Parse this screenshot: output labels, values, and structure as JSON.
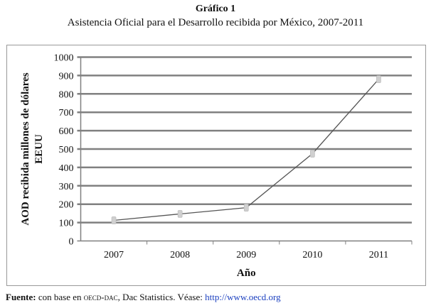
{
  "title": "Gráfico 1",
  "subtitle": "Asistencia Oficial para el Desarrollo recibida por México, 2007-2011",
  "chart_data": {
    "type": "line",
    "categories": [
      "2007",
      "2008",
      "2009",
      "2010",
      "2011"
    ],
    "series": [
      {
        "name": "AOD recibida",
        "values": [
          112,
          147,
          181,
          475,
          880
        ]
      }
    ],
    "xlabel": "Año",
    "ylabel": "AOD recibida millones de dólares EEUU",
    "ylabel_lines": [
      "AOD recibida millones de dólares",
      "EEUU"
    ],
    "ylim": [
      0,
      1000
    ],
    "yticks": [
      0,
      100,
      200,
      300,
      400,
      500,
      600,
      700,
      800,
      900,
      1000
    ],
    "grid": true,
    "line_color": "#555555",
    "grid_color": "#808080",
    "marker_color": "#d0d0d0"
  },
  "source": {
    "label": "Fuente:",
    "text_before": " con base en ",
    "org": "oecd-dac",
    "text_after": ", Dac Statistics. Véase: ",
    "link": "http://www.oecd.org"
  }
}
